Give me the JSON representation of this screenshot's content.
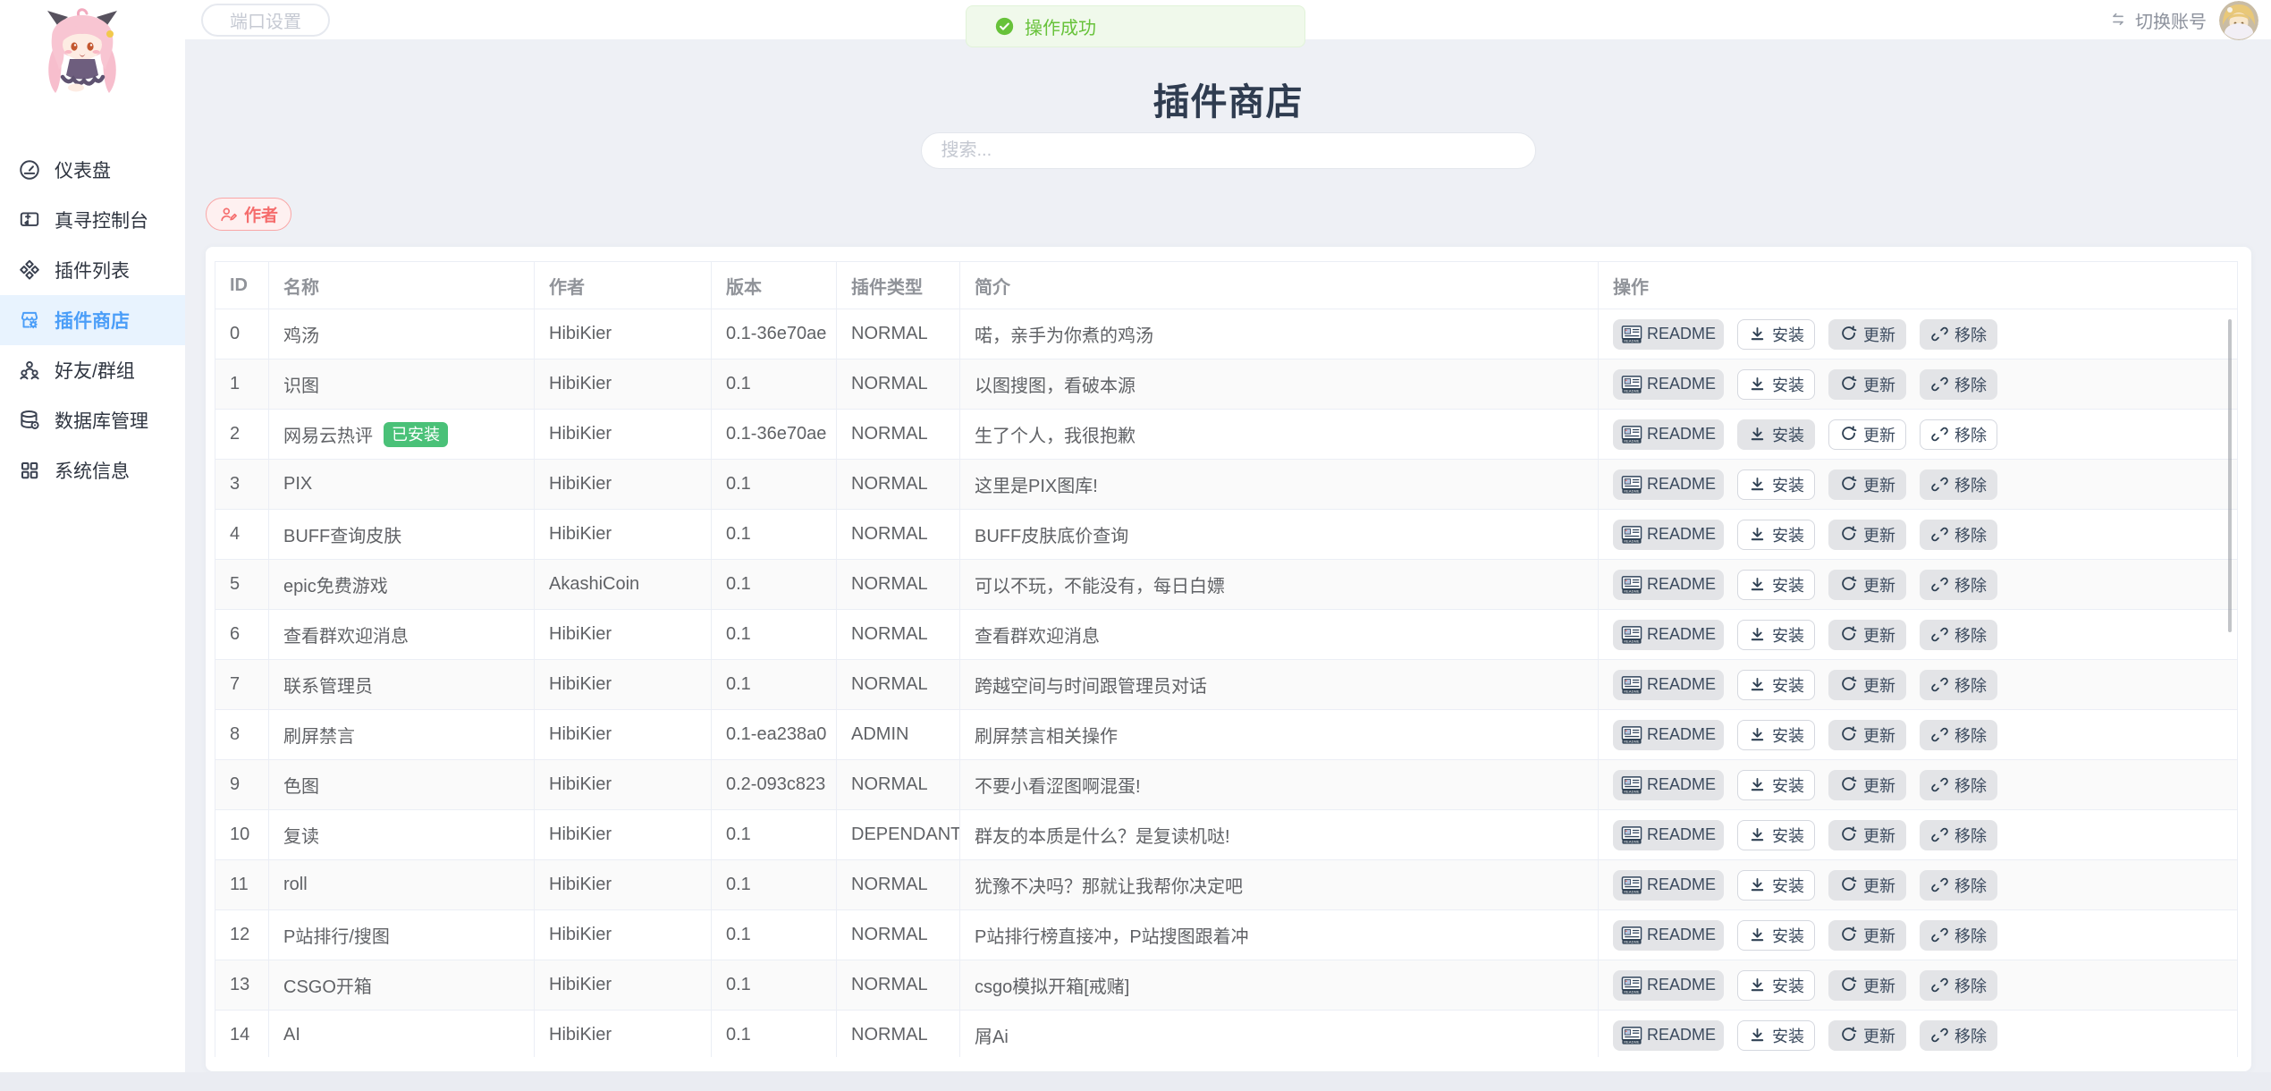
{
  "topbar": {
    "port_button": "端口设置",
    "switch_account": "切换账号"
  },
  "toast": {
    "text": "操作成功"
  },
  "sidebar": {
    "items": [
      {
        "label": "仪表盘",
        "icon": "gauge",
        "active": false
      },
      {
        "label": "真寻控制台",
        "icon": "console",
        "active": false
      },
      {
        "label": "插件列表",
        "icon": "plugins",
        "active": false
      },
      {
        "label": "插件商店",
        "icon": "store",
        "active": true
      },
      {
        "label": "好友/群组",
        "icon": "friends",
        "active": false
      },
      {
        "label": "数据库管理",
        "icon": "database",
        "active": false
      },
      {
        "label": "系统信息",
        "icon": "system",
        "active": false
      }
    ]
  },
  "main": {
    "title": "插件商店",
    "search_placeholder": "搜索...",
    "author_filter": "作者"
  },
  "table": {
    "columns": [
      "ID",
      "名称",
      "作者",
      "版本",
      "插件类型",
      "简介",
      "操作"
    ],
    "installed_badge": "已安装",
    "actions": {
      "readme": "README",
      "install": "安装",
      "update": "更新",
      "remove": "移除"
    },
    "rows": [
      {
        "id": "0",
        "name": "鸡汤",
        "author": "HibiKier",
        "version": "0.1-36e70ae",
        "type": "NORMAL",
        "desc": "喏，亲手为你煮的鸡汤",
        "installed": false
      },
      {
        "id": "1",
        "name": "识图",
        "author": "HibiKier",
        "version": "0.1",
        "type": "NORMAL",
        "desc": "以图搜图，看破本源",
        "installed": false
      },
      {
        "id": "2",
        "name": "网易云热评",
        "author": "HibiKier",
        "version": "0.1-36e70ae",
        "type": "NORMAL",
        "desc": "生了个人，我很抱歉",
        "installed": true
      },
      {
        "id": "3",
        "name": "PIX",
        "author": "HibiKier",
        "version": "0.1",
        "type": "NORMAL",
        "desc": "这里是PIX图库!",
        "installed": false
      },
      {
        "id": "4",
        "name": "BUFF查询皮肤",
        "author": "HibiKier",
        "version": "0.1",
        "type": "NORMAL",
        "desc": "BUFF皮肤底价查询",
        "installed": false
      },
      {
        "id": "5",
        "name": "epic免费游戏",
        "author": "AkashiCoin",
        "version": "0.1",
        "type": "NORMAL",
        "desc": "可以不玩，不能没有，每日白嫖",
        "installed": false
      },
      {
        "id": "6",
        "name": "查看群欢迎消息",
        "author": "HibiKier",
        "version": "0.1",
        "type": "NORMAL",
        "desc": "查看群欢迎消息",
        "installed": false
      },
      {
        "id": "7",
        "name": "联系管理员",
        "author": "HibiKier",
        "version": "0.1",
        "type": "NORMAL",
        "desc": "跨越空间与时间跟管理员对话",
        "installed": false
      },
      {
        "id": "8",
        "name": "刷屏禁言",
        "author": "HibiKier",
        "version": "0.1-ea238a0",
        "type": "ADMIN",
        "desc": "刷屏禁言相关操作",
        "installed": false
      },
      {
        "id": "9",
        "name": "色图",
        "author": "HibiKier",
        "version": "0.2-093c823",
        "type": "NORMAL",
        "desc": "不要小看涩图啊混蛋!",
        "installed": false
      },
      {
        "id": "10",
        "name": "复读",
        "author": "HibiKier",
        "version": "0.1",
        "type": "DEPENDANT",
        "desc": "群友的本质是什么？是复读机哒!",
        "installed": false
      },
      {
        "id": "11",
        "name": "roll",
        "author": "HibiKier",
        "version": "0.1",
        "type": "NORMAL",
        "desc": "犹豫不决吗？那就让我帮你决定吧",
        "installed": false
      },
      {
        "id": "12",
        "name": "P站排行/搜图",
        "author": "HibiKier",
        "version": "0.1",
        "type": "NORMAL",
        "desc": "P站排行榜直接冲，P站搜图跟着冲",
        "installed": false
      },
      {
        "id": "13",
        "name": "CSGO开箱",
        "author": "HibiKier",
        "version": "0.1",
        "type": "NORMAL",
        "desc": "csgo模拟开箱[戒赌]",
        "installed": false
      },
      {
        "id": "14",
        "name": "AI",
        "author": "HibiKier",
        "version": "0.1",
        "type": "NORMAL",
        "desc": "屑Ai",
        "installed": false
      }
    ]
  },
  "colors": {
    "accent_blue": "#4B9EF8",
    "success_green": "#67C23A",
    "badge_green": "#4AC178",
    "danger_red": "#F56C6C",
    "page_bg": "#EEF0F5"
  }
}
